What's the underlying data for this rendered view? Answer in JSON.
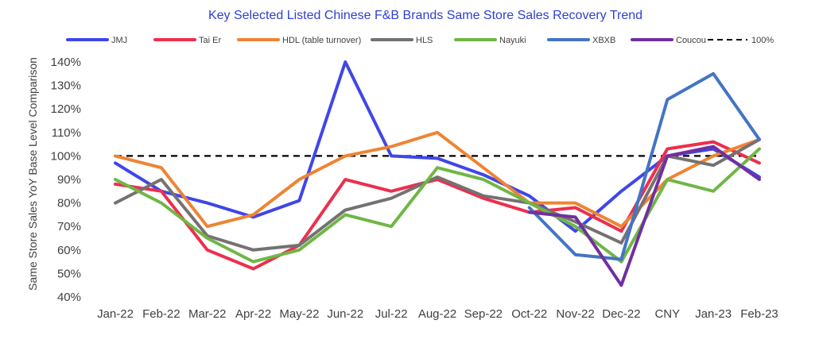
{
  "chart_data": {
    "type": "line",
    "title": "Key Selected Listed Chinese F&B Brands Same Store Sales Recovery Trend",
    "ylabel": "Same Store Sales YoY Base Level Comparison",
    "xlabel": "",
    "categories": [
      "Jan-22",
      "Feb-22",
      "Mar-22",
      "Apr-22",
      "May-22",
      "Jun-22",
      "Jul-22",
      "Aug-22",
      "Sep-22",
      "Oct-22",
      "Nov-22",
      "Dec-22",
      "CNY",
      "Jan-23",
      "Feb-23"
    ],
    "ylim": [
      40,
      140
    ],
    "yticks": [
      40,
      50,
      60,
      70,
      80,
      90,
      100,
      110,
      120,
      130,
      140
    ],
    "ytick_labels": [
      "40%",
      "50%",
      "60%",
      "70%",
      "80%",
      "90%",
      "100%",
      "110%",
      "120%",
      "130%",
      "140%"
    ],
    "grid": false,
    "legend_position": "top",
    "reference_line": {
      "name": "100%",
      "value": 100,
      "color": "#000000",
      "style": "dashed"
    },
    "series": [
      {
        "name": "JMJ",
        "color": "#4046e8",
        "values": [
          97,
          85,
          80,
          74,
          81,
          140,
          100,
          99,
          92,
          83,
          68,
          85,
          100,
          103,
          91
        ]
      },
      {
        "name": "Tai Er",
        "color": "#ee2e4d",
        "values": [
          88,
          85,
          60,
          52,
          62,
          90,
          85,
          90,
          82,
          76,
          78,
          68,
          103,
          106,
          97
        ]
      },
      {
        "name": "HDL (table turnover)",
        "color": "#ee8433",
        "values": [
          100,
          95,
          70,
          75,
          90,
          100,
          104,
          110,
          95,
          80,
          80,
          70,
          90,
          100,
          107
        ]
      },
      {
        "name": "HLS",
        "color": "#767171",
        "values": [
          80,
          90,
          66,
          60,
          62,
          77,
          82,
          91,
          83,
          80,
          72,
          63,
          100,
          96,
          107
        ]
      },
      {
        "name": "Nayuki",
        "color": "#70b646",
        "values": [
          90,
          80,
          65,
          55,
          60,
          75,
          70,
          95,
          90,
          80,
          70,
          55,
          90,
          85,
          103
        ]
      },
      {
        "name": "XBXB",
        "color": "#4474c4",
        "values": [
          null,
          null,
          null,
          null,
          null,
          null,
          null,
          null,
          null,
          78,
          58,
          56,
          124,
          135,
          107
        ]
      },
      {
        "name": "Coucou",
        "color": "#7030a0",
        "values": [
          null,
          null,
          null,
          null,
          null,
          null,
          null,
          null,
          null,
          76,
          74,
          45,
          100,
          104,
          90
        ]
      }
    ]
  }
}
